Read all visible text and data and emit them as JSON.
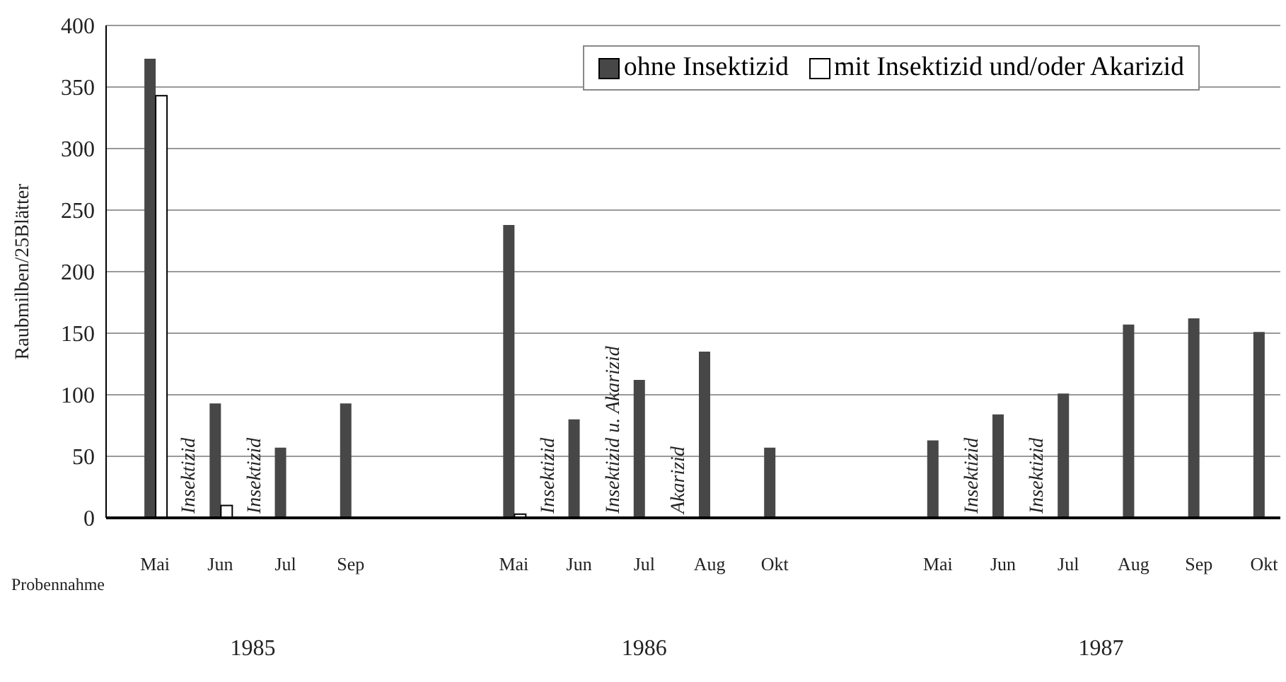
{
  "chart_data": {
    "type": "bar",
    "ylabel": "Raubmilben/25Blätter",
    "categories": [
      null,
      "Mai",
      null,
      "Jun",
      null,
      "Jul",
      null,
      "Sep",
      null,
      null,
      null,
      null,
      "Mai",
      null,
      "Jun",
      null,
      "Jul",
      null,
      "Aug",
      null,
      "Okt",
      null,
      null,
      null,
      null,
      "Mai",
      null,
      "Jun",
      null,
      "Jul",
      null,
      "Aug",
      null,
      "Sep",
      null,
      "Okt"
    ],
    "ylim": [
      0,
      400
    ],
    "yticks": [
      0,
      50,
      100,
      150,
      200,
      250,
      300,
      350,
      400
    ],
    "series": [
      {
        "name": "ohne Insektizid",
        "color": "#474747",
        "values": [
          null,
          373,
          null,
          93,
          null,
          57,
          null,
          93,
          null,
          null,
          null,
          null,
          238,
          null,
          80,
          null,
          112,
          null,
          135,
          null,
          57,
          null,
          null,
          null,
          null,
          63,
          null,
          84,
          null,
          101,
          null,
          157,
          null,
          162,
          null,
          151
        ]
      },
      {
        "name": "mit Insektizid und/oder Akarizid",
        "color": "#ffffff",
        "values": [
          null,
          343,
          null,
          10,
          null,
          null,
          null,
          null,
          null,
          null,
          null,
          null,
          3,
          null,
          null,
          null,
          null,
          null,
          null,
          null,
          null,
          null,
          null,
          null,
          null,
          null,
          null,
          null,
          null,
          null,
          null,
          null,
          null,
          null,
          null,
          null
        ]
      }
    ],
    "grid": "y",
    "legend": "top right",
    "annotations": [
      "Probennahme",
      "1985",
      "1986",
      "1987",
      "Insektizid",
      "Insektizid",
      "Insektizid",
      "Insektizid u. Akarizid",
      "Akarizid",
      "Insektizid",
      "Insektizid"
    ]
  }
}
